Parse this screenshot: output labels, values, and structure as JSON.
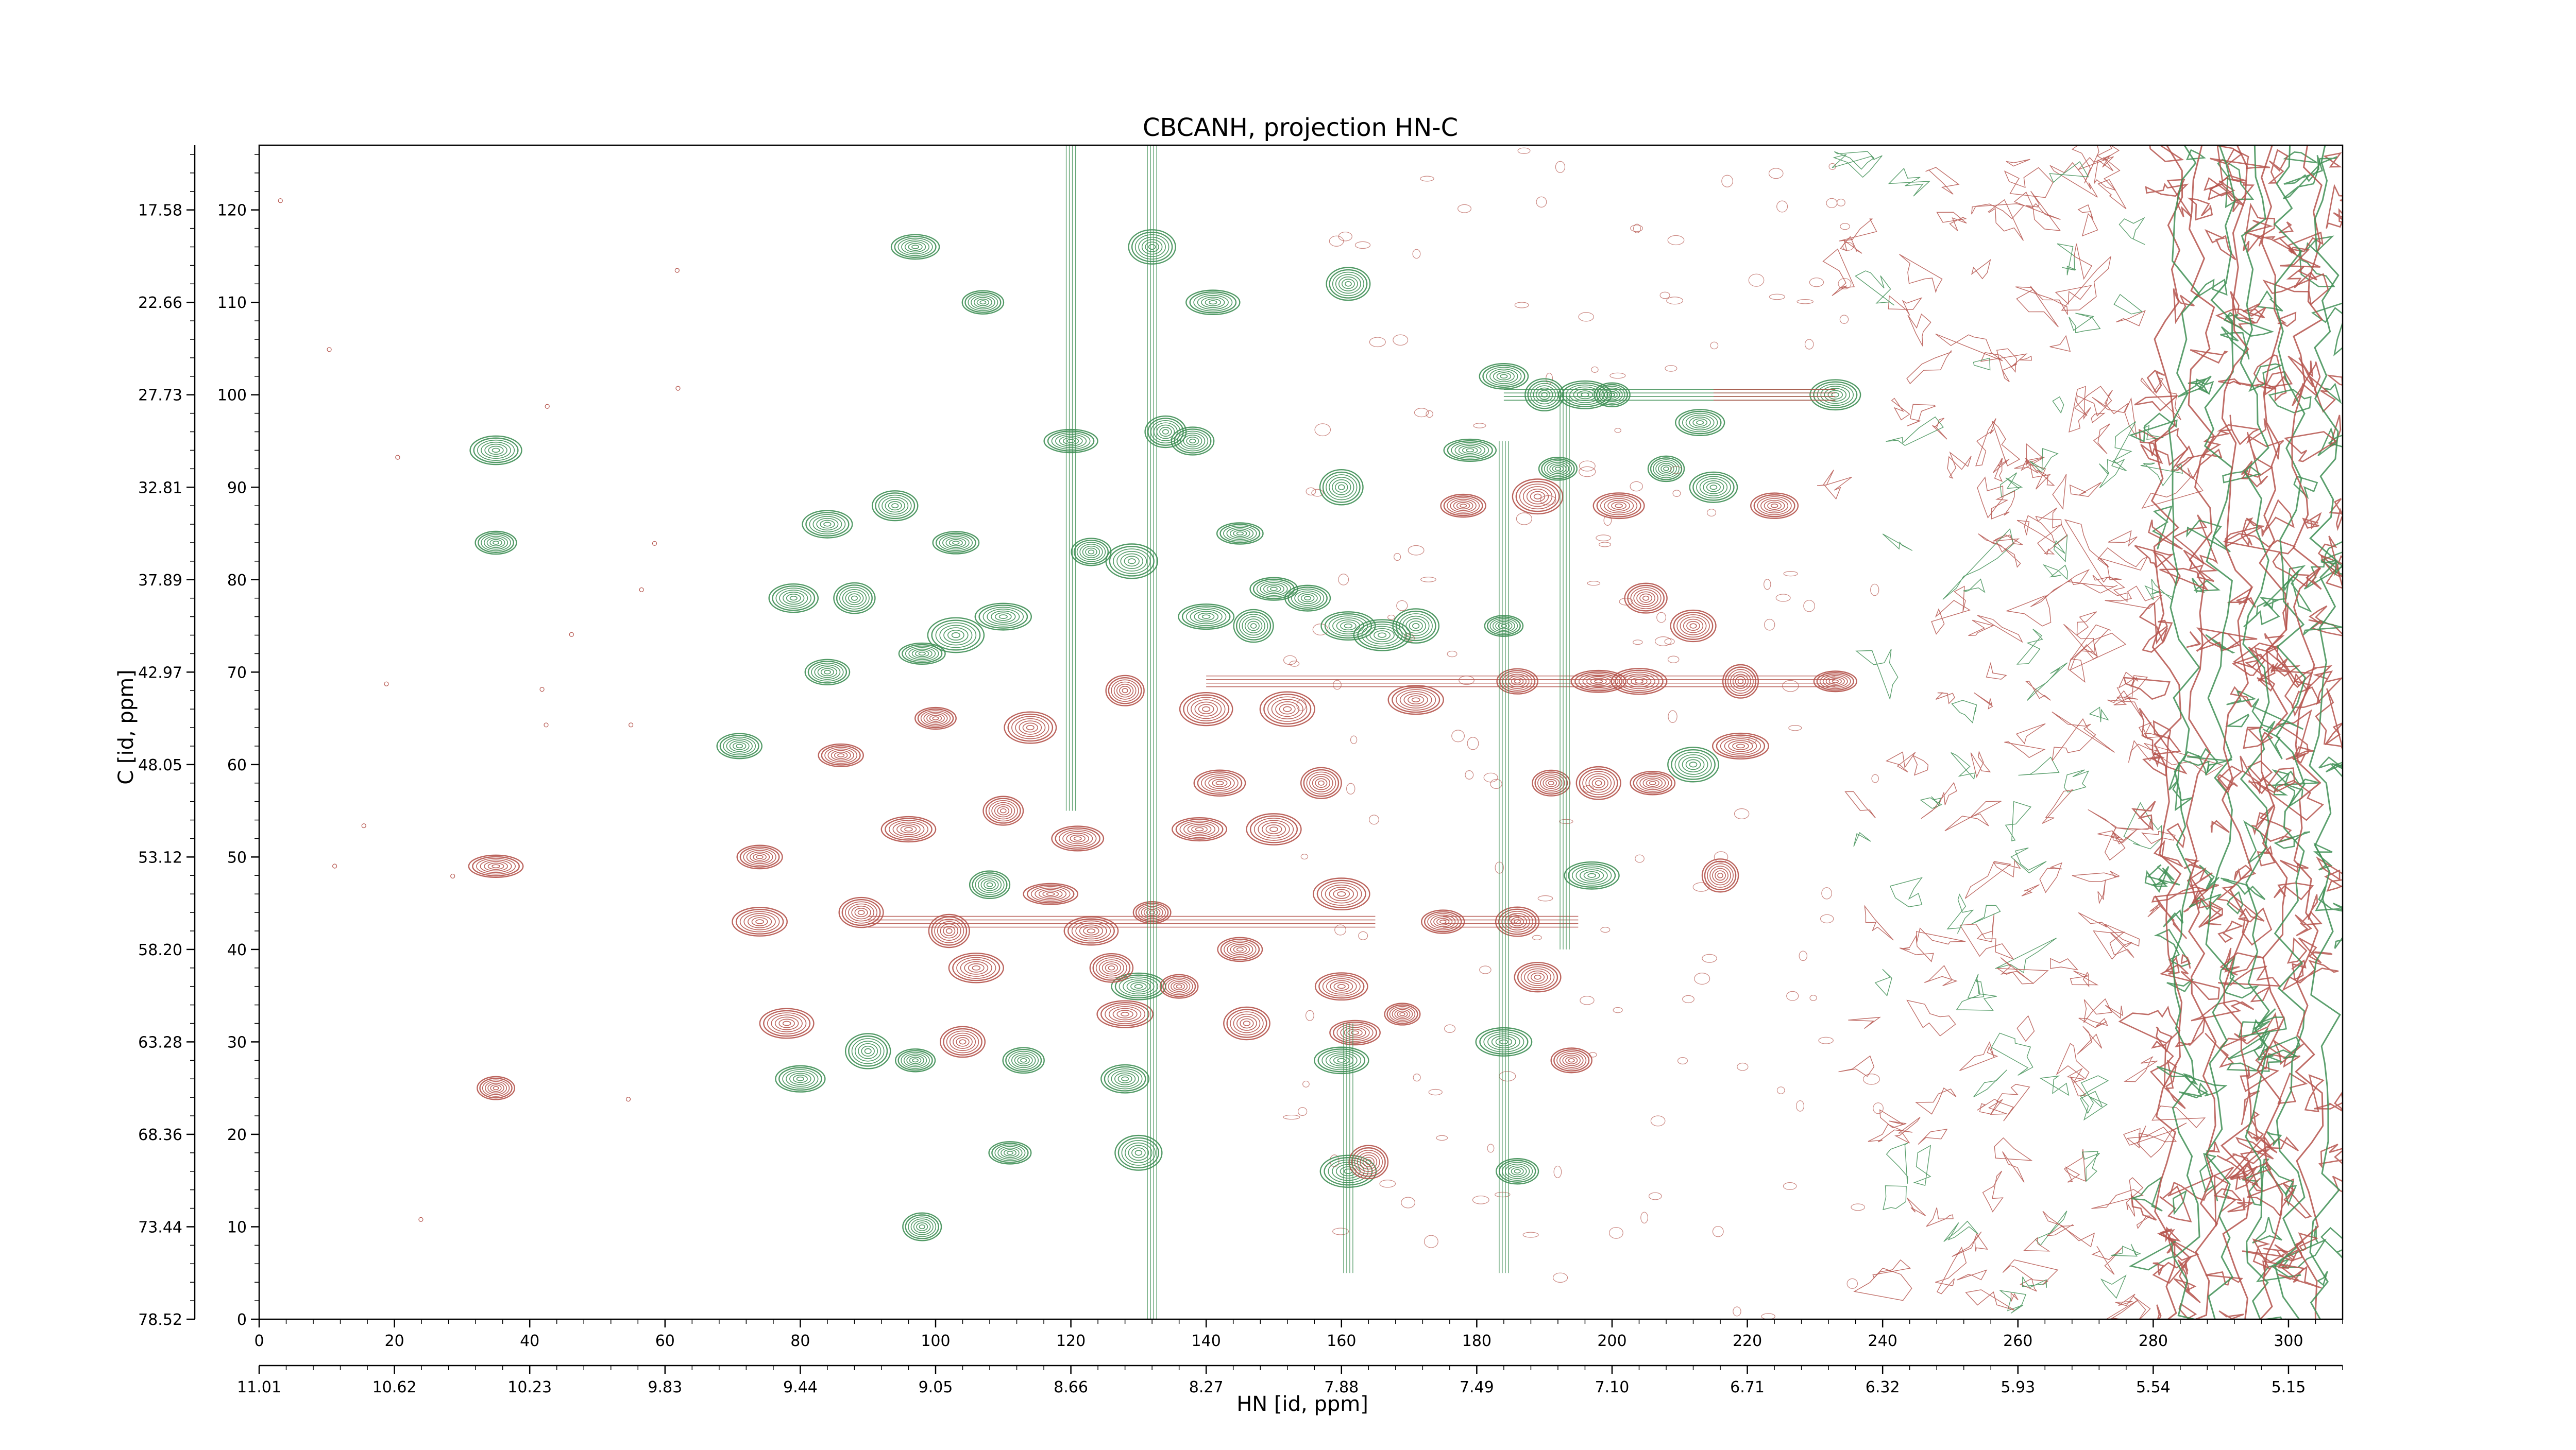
{
  "chart_data": {
    "type": "contour",
    "title": "CBCANH, projection HN-C",
    "xlabel": "HN [id, ppm]",
    "ylabel": "C [id, ppm]",
    "x_index_range": [
      0,
      308
    ],
    "y_index_range": [
      0,
      127
    ],
    "x_index_ticks": [
      "0",
      "20",
      "40",
      "60",
      "80",
      "100",
      "120",
      "140",
      "160",
      "180",
      "200",
      "220",
      "240",
      "260",
      "280",
      "300"
    ],
    "x_ppm_ticks": [
      "11.01",
      "10.62",
      "10.23",
      "9.83",
      "9.44",
      "9.05",
      "8.66",
      "8.27",
      "7.88",
      "7.49",
      "7.10",
      "6.71",
      "6.32",
      "5.93",
      "5.54",
      "5.15"
    ],
    "y_index_ticks": [
      "0",
      "10",
      "20",
      "30",
      "40",
      "50",
      "60",
      "70",
      "80",
      "90",
      "100",
      "110",
      "120"
    ],
    "y_ppm_ticks": [
      "78.52",
      "73.44",
      "68.36",
      "63.28",
      "58.20",
      "53.12",
      "48.05",
      "42.97",
      "37.89",
      "32.81",
      "27.73",
      "22.66",
      "17.58"
    ],
    "grid": false,
    "colors": {
      "positive": "#3f8f55",
      "negative": "#b5544c"
    },
    "series": [
      {
        "sign": "positive",
        "peaks": [
          [
            35,
            94
          ],
          [
            35,
            84
          ],
          [
            71,
            62
          ],
          [
            79,
            78
          ],
          [
            80,
            26
          ],
          [
            84,
            70
          ],
          [
            84,
            86
          ],
          [
            88,
            78
          ],
          [
            94,
            88
          ],
          [
            97,
            116
          ],
          [
            98,
            72
          ],
          [
            103,
            84
          ],
          [
            103,
            74
          ],
          [
            107,
            110
          ],
          [
            108,
            47
          ],
          [
            110,
            76
          ],
          [
            111,
            18
          ],
          [
            113,
            28
          ],
          [
            120,
            95
          ],
          [
            123,
            83
          ],
          [
            128,
            26
          ],
          [
            129,
            82
          ],
          [
            130,
            18
          ],
          [
            130,
            36
          ],
          [
            132,
            116
          ],
          [
            134,
            96
          ],
          [
            138,
            95
          ],
          [
            140,
            76
          ],
          [
            141,
            110
          ],
          [
            145,
            85
          ],
          [
            147,
            75
          ],
          [
            150,
            79
          ],
          [
            155,
            78
          ],
          [
            160,
            28
          ],
          [
            160,
            90
          ],
          [
            161,
            75
          ],
          [
            161,
            112
          ],
          [
            161,
            16
          ],
          [
            166,
            74
          ],
          [
            171,
            75
          ],
          [
            179,
            94
          ],
          [
            184,
            102
          ],
          [
            184,
            75
          ],
          [
            184,
            30
          ],
          [
            186,
            16
          ],
          [
            190,
            100
          ],
          [
            192,
            92
          ],
          [
            196,
            100
          ],
          [
            197,
            48
          ],
          [
            200,
            100
          ],
          [
            208,
            92
          ],
          [
            212,
            60
          ],
          [
            213,
            97
          ],
          [
            215,
            90
          ],
          [
            233,
            100
          ],
          [
            98,
            10
          ],
          [
            97,
            28
          ],
          [
            90,
            29
          ]
        ]
      },
      {
        "sign": "negative",
        "peaks": [
          [
            35,
            49
          ],
          [
            35,
            25
          ],
          [
            74,
            50
          ],
          [
            74,
            43
          ],
          [
            78,
            32
          ],
          [
            86,
            61
          ],
          [
            89,
            44
          ],
          [
            96,
            53
          ],
          [
            100,
            65
          ],
          [
            102,
            42
          ],
          [
            104,
            30
          ],
          [
            106,
            38
          ],
          [
            110,
            55
          ],
          [
            114,
            64
          ],
          [
            117,
            46
          ],
          [
            121,
            52
          ],
          [
            123,
            42
          ],
          [
            126,
            38
          ],
          [
            128,
            33
          ],
          [
            128,
            68
          ],
          [
            132,
            44
          ],
          [
            136,
            36
          ],
          [
            139,
            53
          ],
          [
            140,
            66
          ],
          [
            142,
            58
          ],
          [
            145,
            40
          ],
          [
            146,
            32
          ],
          [
            150,
            53
          ],
          [
            152,
            66
          ],
          [
            157,
            58
          ],
          [
            160,
            46
          ],
          [
            160,
            36
          ],
          [
            162,
            31
          ],
          [
            164,
            17
          ],
          [
            169,
            33
          ],
          [
            171,
            67
          ],
          [
            175,
            43
          ],
          [
            178,
            88
          ],
          [
            186,
            69
          ],
          [
            186,
            43
          ],
          [
            189,
            37
          ],
          [
            189,
            89
          ],
          [
            191,
            58
          ],
          [
            194,
            28
          ],
          [
            198,
            69
          ],
          [
            198,
            58
          ],
          [
            201,
            88
          ],
          [
            204,
            69
          ],
          [
            205,
            78
          ],
          [
            206,
            58
          ],
          [
            212,
            75
          ],
          [
            216,
            48
          ],
          [
            219,
            62
          ],
          [
            219,
            69
          ],
          [
            224,
            88
          ],
          [
            233,
            69
          ]
        ]
      }
    ],
    "noise_region_x": [
      230,
      308
    ]
  }
}
